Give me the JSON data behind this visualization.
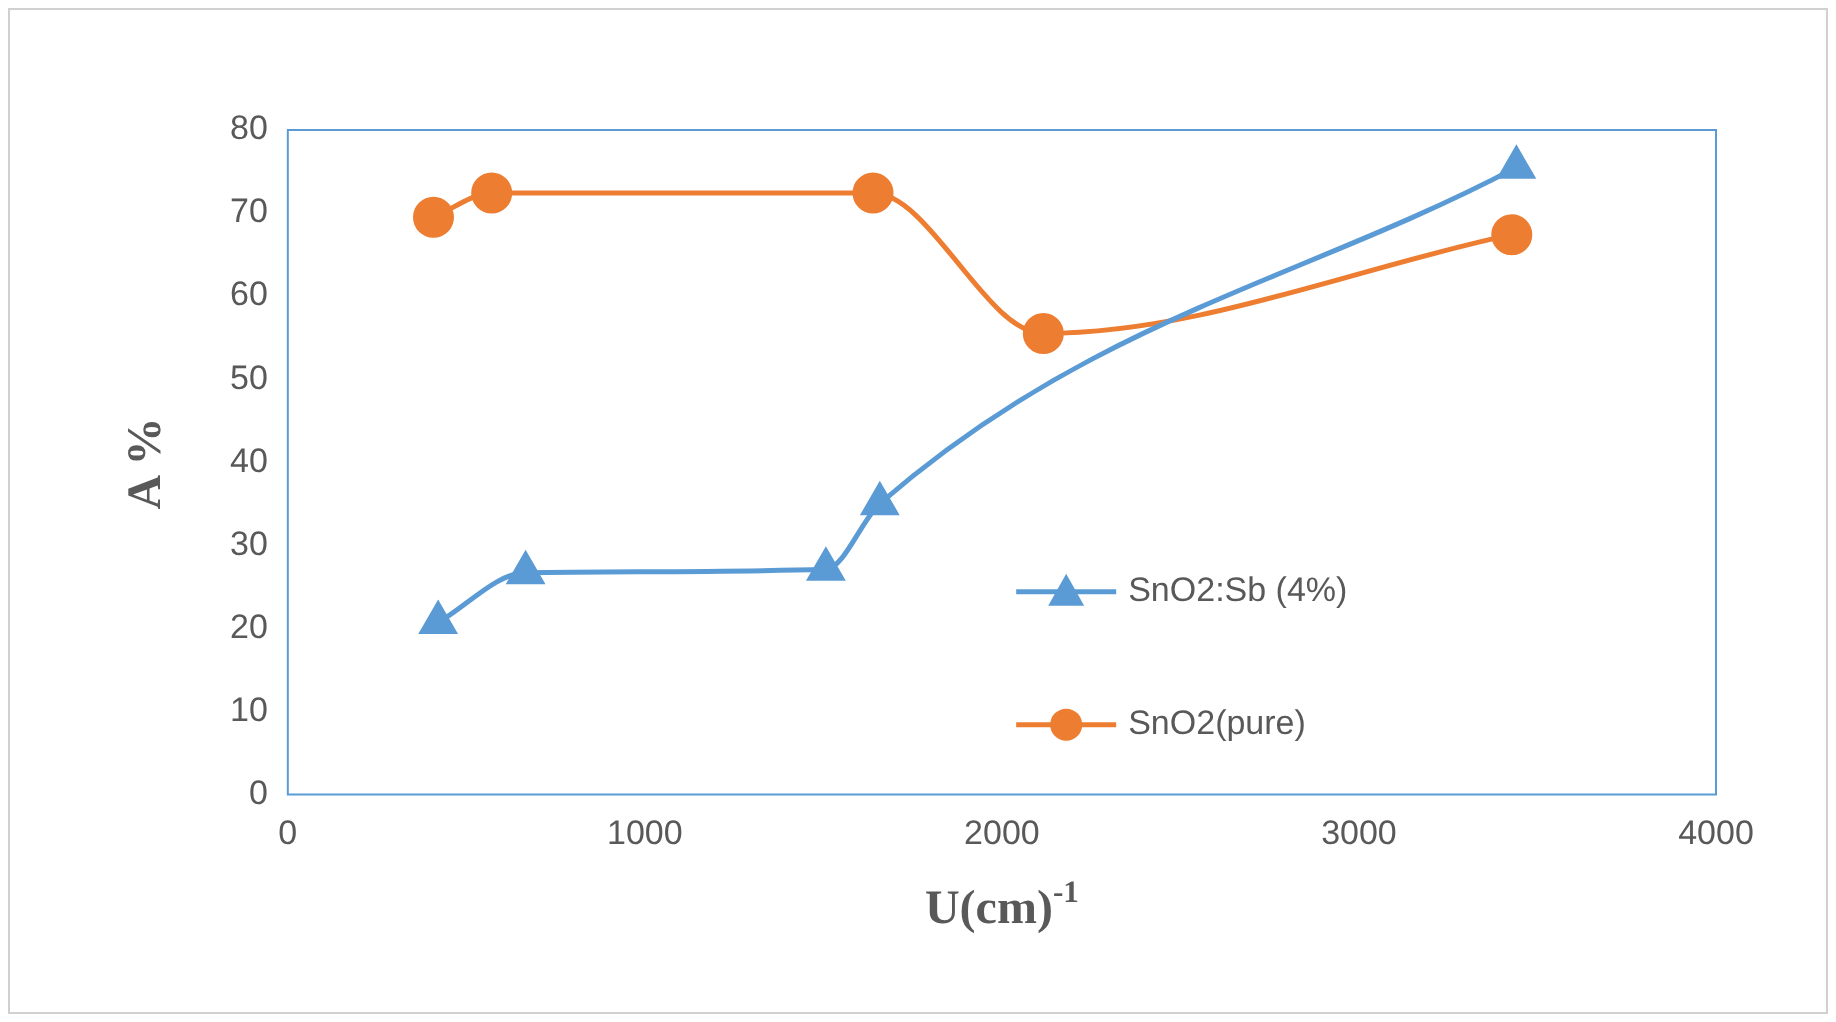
{
  "chart_data": {
    "type": "line",
    "xlabel": "U(cm)$^{-1}$",
    "ylabel": "A %",
    "xlim": [
      0,
      4000
    ],
    "xticks": [
      0,
      1000,
      2000,
      3000,
      4000
    ],
    "ylim": [
      0,
      80
    ],
    "yticks": [
      0,
      10,
      20,
      30,
      40,
      50,
      60,
      70,
      80
    ],
    "grid": false,
    "legend": "right",
    "series": [
      {
        "name": "SnO2:Sb (4%)",
        "color": "#5b9bd5",
        "marker": "triangle",
        "x": [
          421,
          666,
          1507,
          1658,
          3441
        ],
        "values": [
          20.7,
          26.7,
          27.1,
          35,
          75.5
        ]
      },
      {
        "name": "SnO2(pure)",
        "color": "#ed7d31",
        "marker": "circle",
        "x": [
          408,
          571,
          1639,
          2116,
          3428
        ],
        "values": [
          69.5,
          72.4,
          72.4,
          55.5,
          67.4
        ]
      }
    ]
  }
}
